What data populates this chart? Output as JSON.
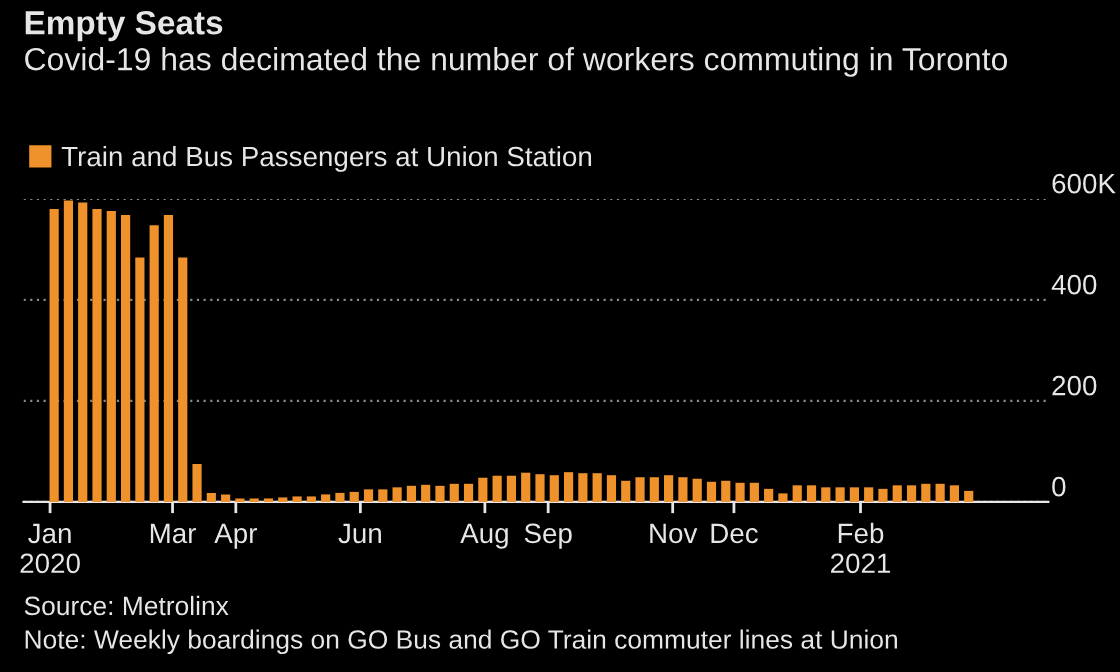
{
  "chart_data": {
    "type": "bar",
    "title": "Empty Seats",
    "subtitle": "Covid-19 has decimated the number of workers commuting in Toronto",
    "annotations": [
      "Source: Metrolinx",
      "Note: Weekly boardings on GO Bus and GO Train commuter lines at Union"
    ],
    "x": [
      "2020-01-03",
      "2020-01-10",
      "2020-01-17",
      "2020-01-24",
      "2020-01-31",
      "2020-02-07",
      "2020-02-14",
      "2020-02-21",
      "2020-02-28",
      "2020-03-06",
      "2020-03-13",
      "2020-03-20",
      "2020-03-27",
      "2020-04-03",
      "2020-04-10",
      "2020-04-17",
      "2020-04-24",
      "2020-05-01",
      "2020-05-08",
      "2020-05-15",
      "2020-05-22",
      "2020-05-29",
      "2020-06-05",
      "2020-06-12",
      "2020-06-19",
      "2020-06-26",
      "2020-07-03",
      "2020-07-10",
      "2020-07-17",
      "2020-07-24",
      "2020-07-31",
      "2020-08-07",
      "2020-08-14",
      "2020-08-21",
      "2020-08-28",
      "2020-09-04",
      "2020-09-11",
      "2020-09-18",
      "2020-09-25",
      "2020-10-02",
      "2020-10-09",
      "2020-10-16",
      "2020-10-23",
      "2020-10-30",
      "2020-11-06",
      "2020-11-13",
      "2020-11-20",
      "2020-11-27",
      "2020-12-04",
      "2020-12-11",
      "2020-12-18",
      "2020-12-25",
      "2021-01-01",
      "2021-01-08",
      "2021-01-15",
      "2021-01-22",
      "2021-01-29",
      "2021-02-05",
      "2021-02-12",
      "2021-02-19",
      "2021-02-26",
      "2021-03-05",
      "2021-03-12",
      "2021-03-19",
      "2021-03-26"
    ],
    "series": [
      {
        "name": "Train and Bus Passengers at Union Station",
        "color": "#f0922b",
        "values": [
          580,
          597,
          593,
          580,
          576,
          568,
          484,
          548,
          568,
          484,
          75,
          18,
          15,
          7,
          7,
          7,
          9,
          11,
          11,
          15,
          18,
          20,
          25,
          25,
          29,
          32,
          34,
          32,
          36,
          36,
          48,
          52,
          52,
          58,
          55,
          53,
          59,
          57,
          57,
          53,
          42,
          49,
          49,
          53,
          49,
          46,
          40,
          42,
          38,
          38,
          26,
          17,
          33,
          33,
          29,
          29,
          29,
          29,
          26,
          33,
          33,
          36,
          36,
          33,
          22
        ]
      }
    ],
    "xlim": [
      "2019-12-19",
      "2021-05-04"
    ],
    "xticks": [
      {
        "value": "2020-01-01",
        "label": "Jan\n2020"
      },
      {
        "value": "2020-03-01",
        "label": "Mar"
      },
      {
        "value": "2020-04-01",
        "label": "Apr"
      },
      {
        "value": "2020-06-01",
        "label": "Jun"
      },
      {
        "value": "2020-08-01",
        "label": "Aug"
      },
      {
        "value": "2020-09-01",
        "label": "Sep"
      },
      {
        "value": "2020-11-01",
        "label": "Nov"
      },
      {
        "value": "2020-12-01",
        "label": "Dec"
      },
      {
        "value": "2021-02-01",
        "label": "Feb\n2021"
      }
    ],
    "ylim": [
      0,
      600
    ],
    "yticks": [
      0,
      200,
      400,
      {
        "value": 600,
        "label": "600K"
      }
    ],
    "grid": "y",
    "legend": "top left"
  }
}
